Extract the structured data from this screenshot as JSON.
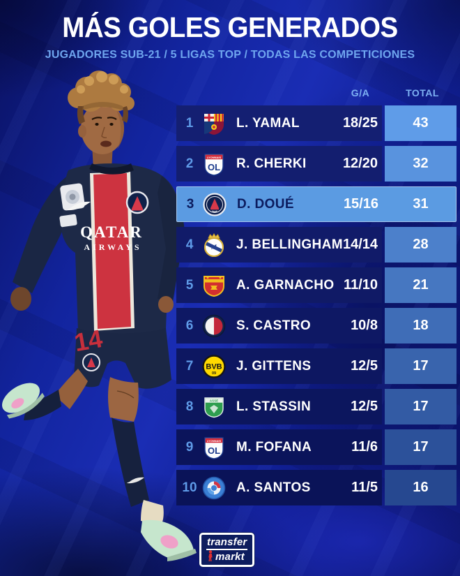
{
  "header": {
    "title": "MÁS GOLES GENERADOS",
    "subtitle": "JUGADORES SUB-21 / 5 LIGAS TOP / TODAS LAS COMPETICIONES"
  },
  "table": {
    "columns": {
      "ga": "G/A",
      "total": "TOTAL"
    },
    "rows": [
      {
        "rank": "1",
        "badge": "barcelona-badge-icon",
        "player": "L. YAMAL",
        "ga": "18/25",
        "total": "43",
        "highlighted": false
      },
      {
        "rank": "2",
        "badge": "lyon-badge-icon",
        "player": "R. CHERKI",
        "ga": "12/20",
        "total": "32",
        "highlighted": false
      },
      {
        "rank": "3",
        "badge": "psg-badge-icon",
        "player": "D. DOUÉ",
        "ga": "15/16",
        "total": "31",
        "highlighted": true
      },
      {
        "rank": "4",
        "badge": "real-madrid-badge-icon",
        "player": "J. BELLINGHAM",
        "ga": "14/14",
        "total": "28",
        "highlighted": false
      },
      {
        "rank": "5",
        "badge": "man-utd-badge-icon",
        "player": "A. GARNACHO",
        "ga": "11/10",
        "total": "21",
        "highlighted": false
      },
      {
        "rank": "6",
        "badge": "bologna-badge-icon",
        "player": "S. CASTRO",
        "ga": "10/8",
        "total": "18",
        "highlighted": false
      },
      {
        "rank": "7",
        "badge": "dortmund-badge-icon",
        "player": "J. GITTENS",
        "ga": "12/5",
        "total": "17",
        "highlighted": false
      },
      {
        "rank": "8",
        "badge": "saint-etienne-badge-icon",
        "player": "L. STASSIN",
        "ga": "12/5",
        "total": "17",
        "highlighted": false
      },
      {
        "rank": "9",
        "badge": "lyon-badge-icon",
        "player": "M. FOFANA",
        "ga": "11/6",
        "total": "17",
        "highlighted": false
      },
      {
        "rank": "10",
        "badge": "strasbourg-badge-icon",
        "player": "A. SANTOS",
        "ga": "11/5",
        "total": "16",
        "highlighted": false
      }
    ]
  },
  "player_image": {
    "jersey_sponsor_line1": "QATAR",
    "jersey_sponsor_line2": "AIRWAYS",
    "shorts_number": "14"
  },
  "logo": {
    "line1": "transfer",
    "line2": "markt"
  },
  "colors": {
    "title": "#ffffff",
    "subtitle": "#6fa6ef",
    "column_header": "#7db1f3",
    "rank": "#5f9be8",
    "row_bg_top": "#141f72",
    "row_bg_bottom": "#0a1358",
    "total_bg_top": "#5f9ce8",
    "total_bg_bottom": "#264890",
    "highlight_bg": "#5b9be2",
    "highlight_text": "#0b1b5e"
  }
}
